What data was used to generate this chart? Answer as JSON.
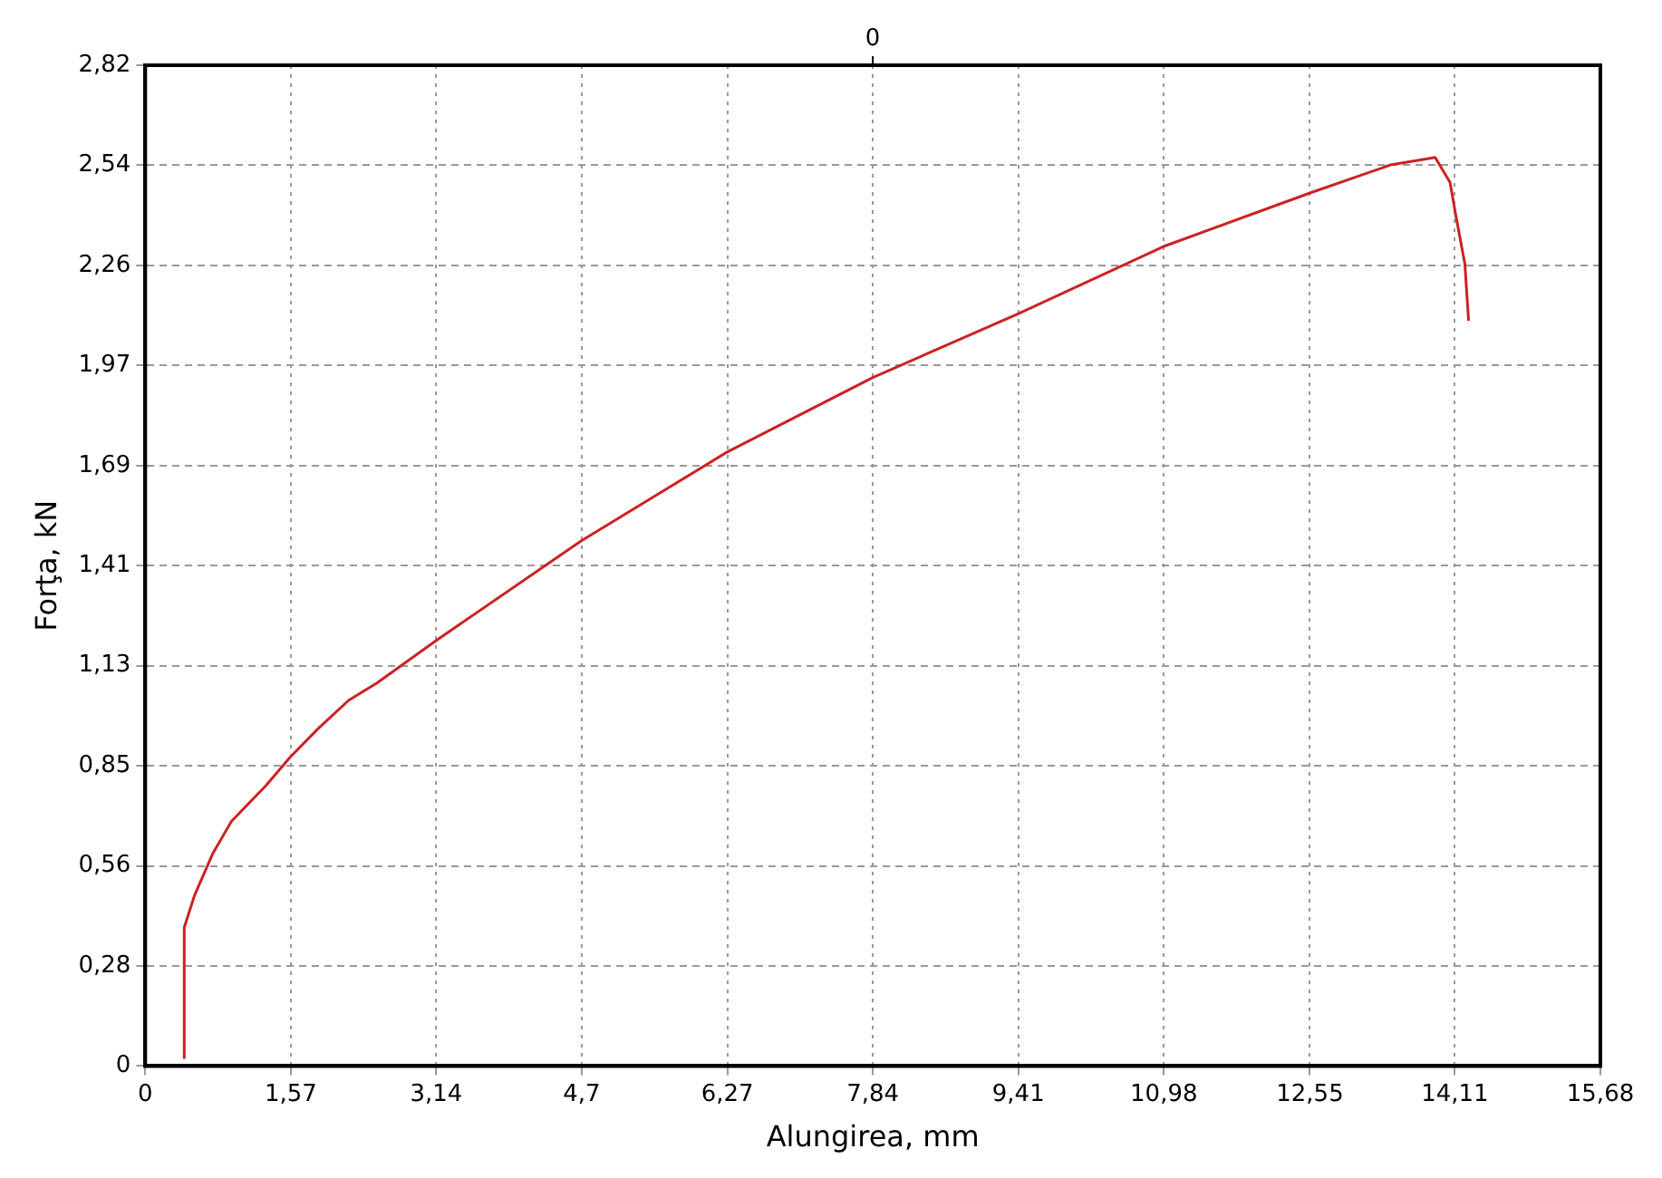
{
  "chart_data": {
    "type": "line",
    "xlabel": "Alungirea, mm",
    "ylabel": "Forţa, kN",
    "x": [
      0.42,
      0.42,
      0.53,
      0.73,
      0.93,
      1.3,
      1.56,
      1.86,
      2.19,
      2.5,
      3.14,
      4.7,
      6.27,
      7.84,
      9.41,
      10.98,
      12.55,
      13.43,
      13.9,
      14.06,
      14.12,
      14.22,
      14.26
    ],
    "series": [
      {
        "color": "#cc2222",
        "values": [
          0.02,
          0.39,
          0.48,
          0.6,
          0.69,
          0.79,
          0.87,
          0.95,
          1.03,
          1.08,
          1.2,
          1.48,
          1.73,
          1.94,
          2.12,
          2.31,
          2.46,
          2.54,
          2.56,
          2.49,
          2.4,
          2.26,
          2.1
        ]
      }
    ],
    "xlim": [
      0,
      15.68
    ],
    "xticks": [
      0,
      {
        "value": 1.568,
        "label": "1,57"
      },
      {
        "value": 3.136,
        "label": "3,14"
      },
      {
        "value": 4.704,
        "label": "4,7"
      },
      {
        "value": 6.272,
        "label": "6,27"
      },
      {
        "value": 7.84,
        "label": "7,84"
      },
      {
        "value": 9.408,
        "label": "9,41"
      },
      {
        "value": 10.976,
        "label": "10,98"
      },
      {
        "value": 12.55,
        "label": "12,55"
      },
      {
        "value": 14.112,
        "label": "14,11"
      },
      {
        "value": 15.68,
        "label": "15,68"
      }
    ],
    "ylim": [
      0,
      2.82
    ],
    "yticks": [
      0,
      {
        "value": 0.282,
        "label": "0,28"
      },
      {
        "value": 0.564,
        "label": "0,56"
      },
      {
        "value": 0.846,
        "label": "0,85"
      },
      {
        "value": 1.128,
        "label": "1,13"
      },
      {
        "value": 1.41,
        "label": "1,41"
      },
      {
        "value": 1.692,
        "label": "1,69"
      },
      {
        "value": 1.974,
        "label": "1,97"
      },
      {
        "value": 2.256,
        "label": "2,26"
      },
      {
        "value": 2.538,
        "label": "2,54"
      },
      {
        "value": 2.82,
        "label": "2,82"
      }
    ],
    "annotations": [
      "0"
    ],
    "grid": true,
    "marker": "none",
    "line_style": "solid",
    "legend": false
  }
}
